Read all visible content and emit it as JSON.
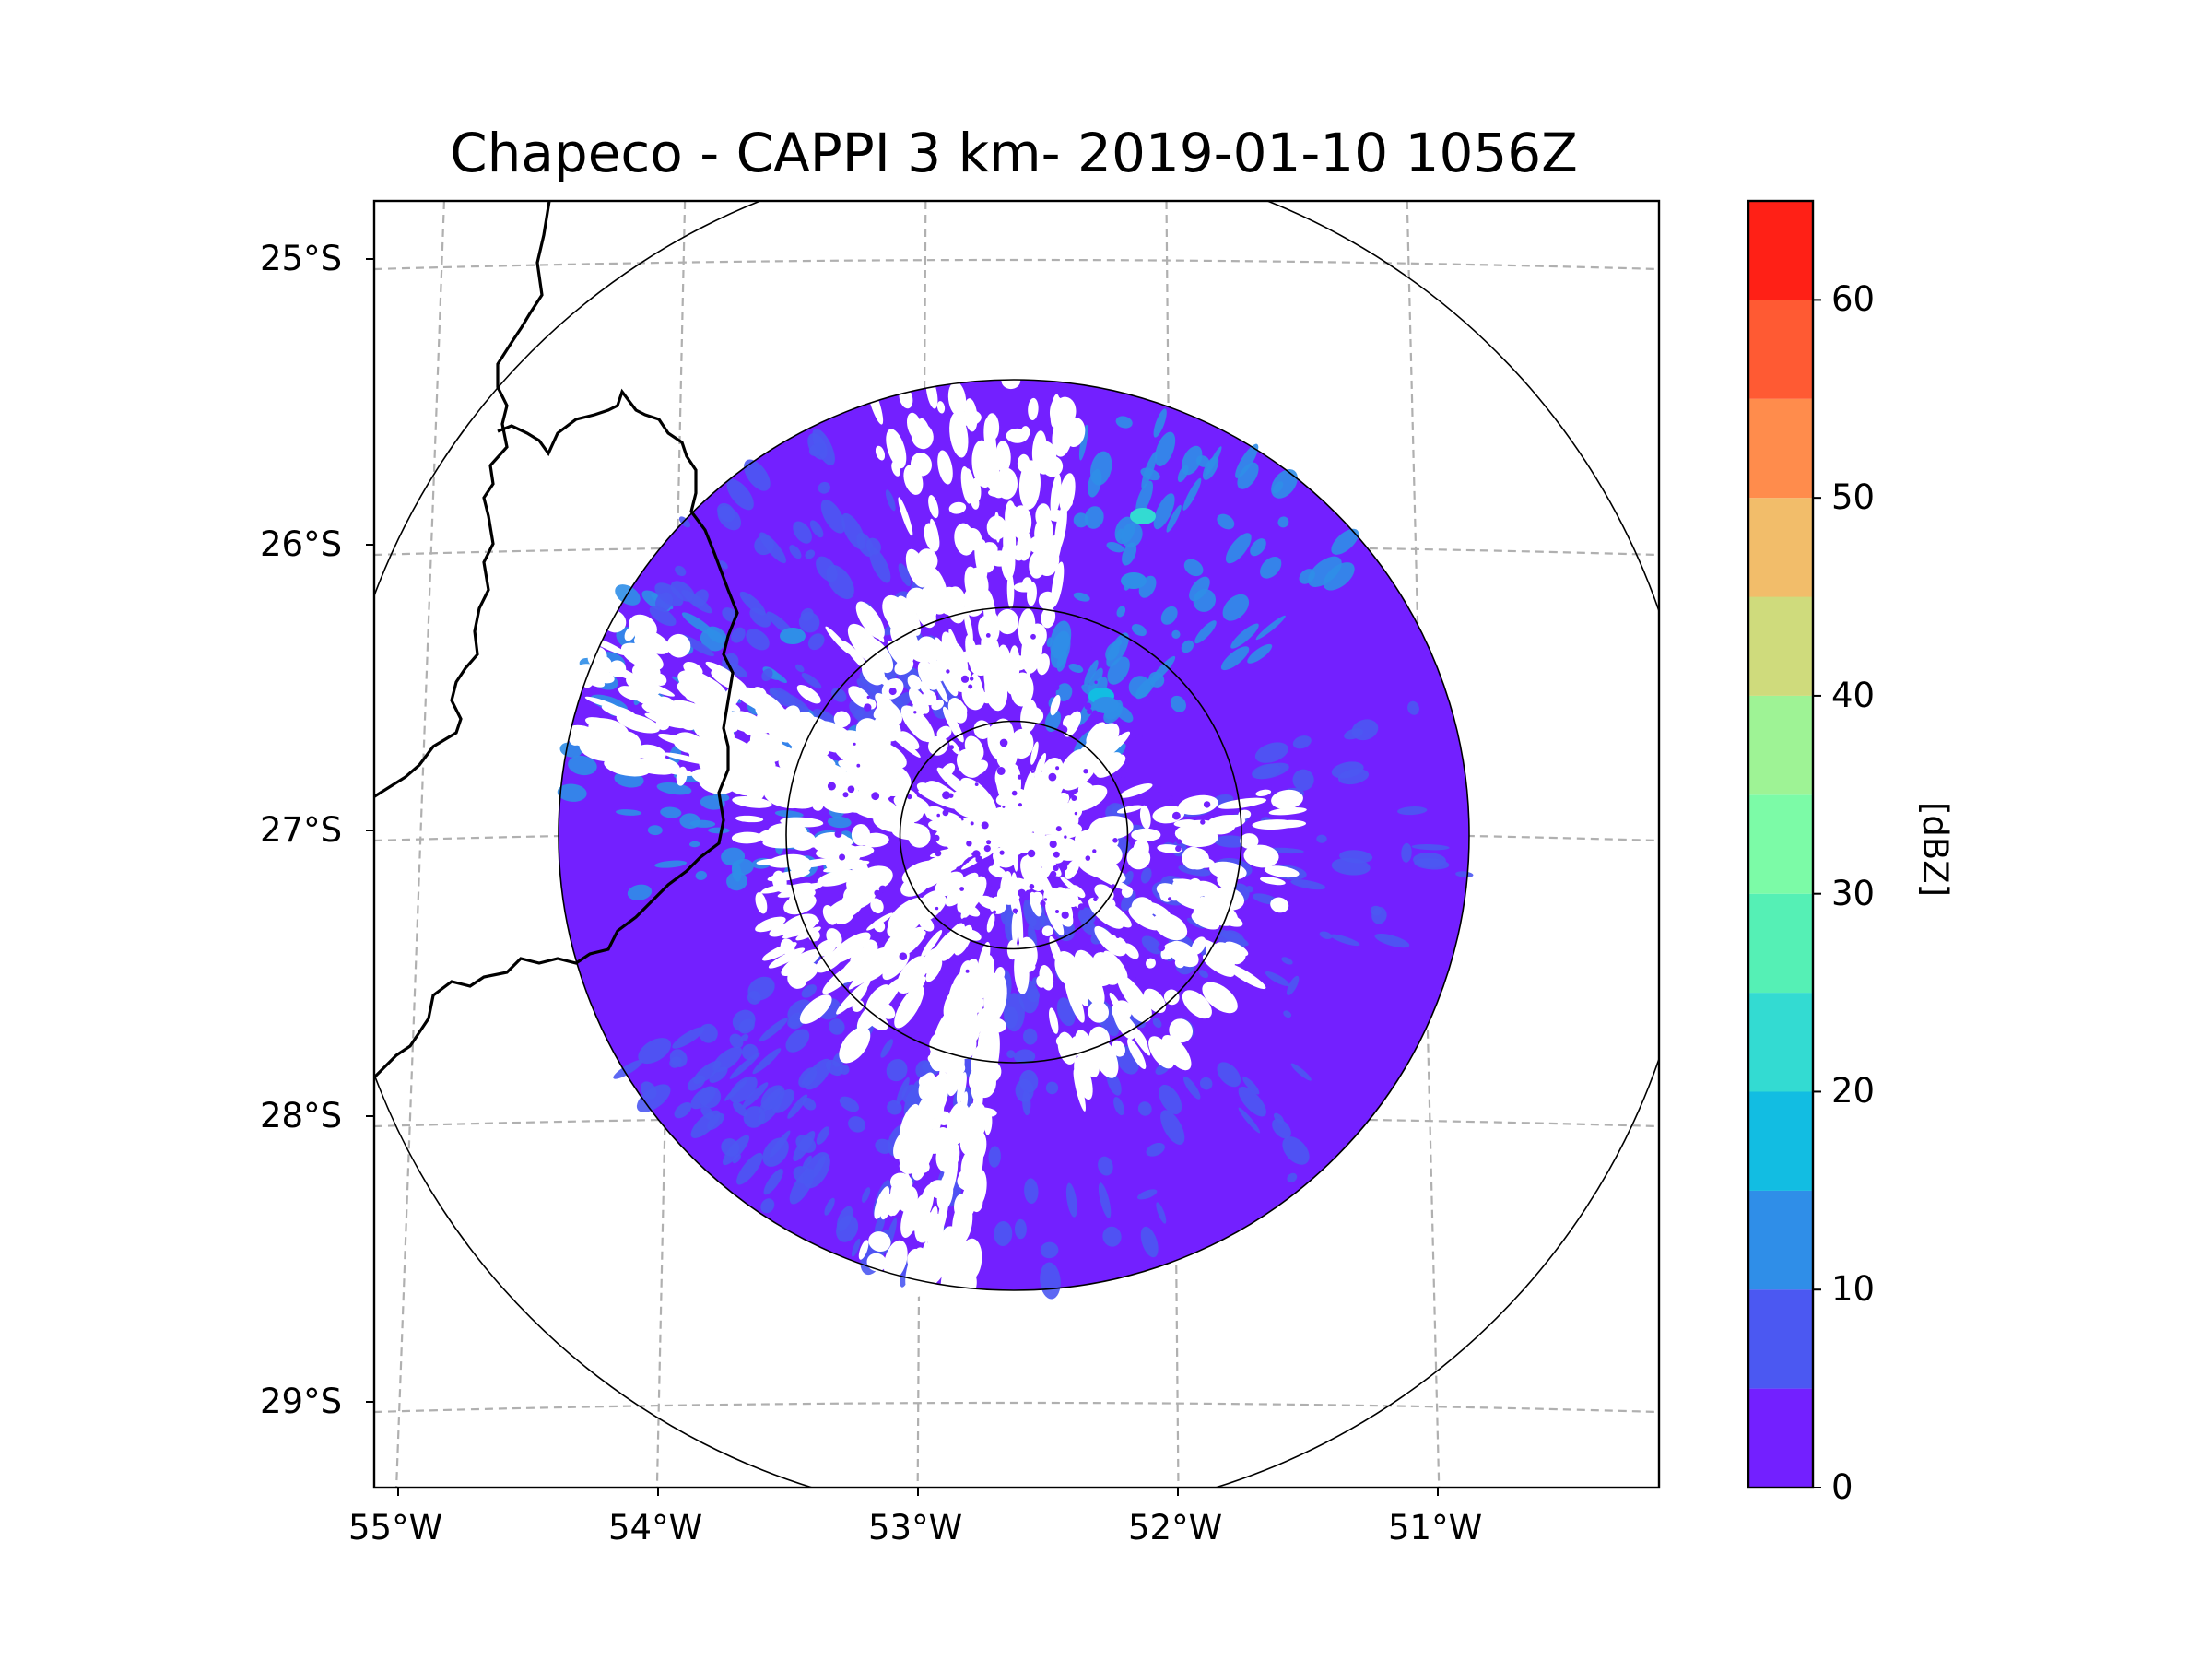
{
  "chart_data": {
    "type": "heatmap",
    "title": "Chapeco - CAPPI 3 km- 2019-01-10 1056Z",
    "map": {
      "lon_range": [
        -55.2,
        -50.1
      ],
      "lat_range": [
        -29.3,
        -24.8
      ],
      "radar_center": {
        "lon": -52.6,
        "lat": -27.03
      },
      "x_ticks": [
        {
          "value": -55,
          "label": "55°W"
        },
        {
          "value": -54,
          "label": "54°W"
        },
        {
          "value": -53,
          "label": "53°W"
        },
        {
          "value": -52,
          "label": "52°W"
        },
        {
          "value": -51,
          "label": "51°W"
        }
      ],
      "y_ticks": [
        {
          "value": -25,
          "label": "25°S"
        },
        {
          "value": -26,
          "label": "26°S"
        },
        {
          "value": -27,
          "label": "27°S"
        },
        {
          "value": -28,
          "label": "28°S"
        },
        {
          "value": -29,
          "label": "29°S"
        }
      ],
      "gridlines": true,
      "range_rings_km": [
        50,
        100,
        200,
        300
      ]
    },
    "colorbar": {
      "label": "[dBZ]",
      "range": [
        0,
        65
      ],
      "ticks": [
        0,
        10,
        20,
        30,
        40,
        50,
        60
      ],
      "bins": [
        {
          "min": 0,
          "max": 5,
          "color": "#7320ff"
        },
        {
          "min": 5,
          "max": 10,
          "color": "#4b58f2"
        },
        {
          "min": 10,
          "max": 15,
          "color": "#2f8ee8"
        },
        {
          "min": 15,
          "max": 20,
          "color": "#12bde2"
        },
        {
          "min": 20,
          "max": 25,
          "color": "#33dbd2"
        },
        {
          "min": 25,
          "max": 30,
          "color": "#55f0b5"
        },
        {
          "min": 30,
          "max": 35,
          "color": "#7cfba7"
        },
        {
          "min": 35,
          "max": 40,
          "color": "#9ef395"
        },
        {
          "min": 40,
          "max": 45,
          "color": "#cfdb7c"
        },
        {
          "min": 45,
          "max": 50,
          "color": "#f2bd6a"
        },
        {
          "min": 50,
          "max": 55,
          "color": "#ff8c4c"
        },
        {
          "min": 55,
          "max": 60,
          "color": "#ff5a33"
        },
        {
          "min": 60,
          "max": 65,
          "color": "#ff2016"
        }
      ]
    }
  }
}
